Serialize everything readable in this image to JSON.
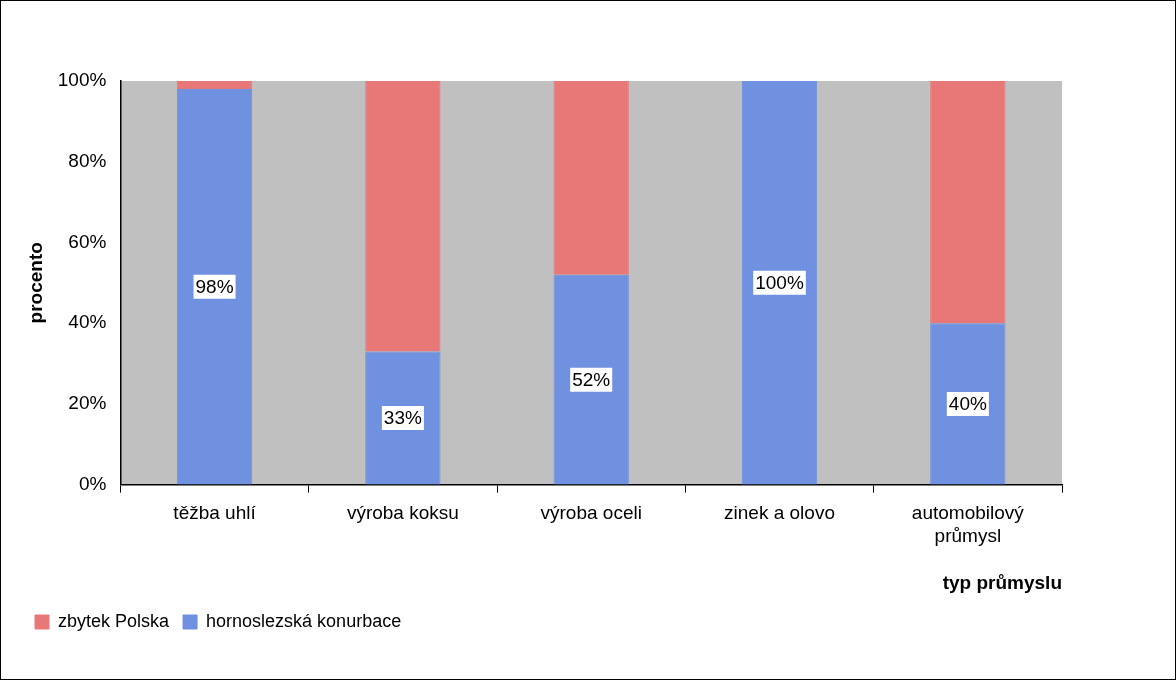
{
  "chart_data": {
    "type": "bar",
    "stacked": true,
    "xlabel": "typ průmyslu",
    "ylabel": "procento",
    "categories": [
      "těžba uhlí",
      "výroba koksu",
      "výroba oceli",
      "zinek a olovo",
      "automobilový průmysl"
    ],
    "series": [
      {
        "name": "hornoslezská konurbace",
        "color": "#7090e0",
        "values": [
          98,
          33,
          52,
          100,
          40
        ],
        "value_labels": [
          "98%",
          "33%",
          "52%",
          "100%",
          "40%"
        ]
      },
      {
        "name": "zbytek Polska",
        "color": "#e87878",
        "values": [
          2,
          67,
          48,
          0,
          60
        ]
      }
    ],
    "ylim": [
      0,
      100
    ],
    "yticks": [
      {
        "value": 0,
        "label": "0%"
      },
      {
        "value": 20,
        "label": "20%"
      },
      {
        "value": 40,
        "label": "40%"
      },
      {
        "value": 60,
        "label": "60%"
      },
      {
        "value": 80,
        "label": "80%"
      },
      {
        "value": 100,
        "label": "100%"
      }
    ],
    "grid": false,
    "legend": "bottom left"
  }
}
